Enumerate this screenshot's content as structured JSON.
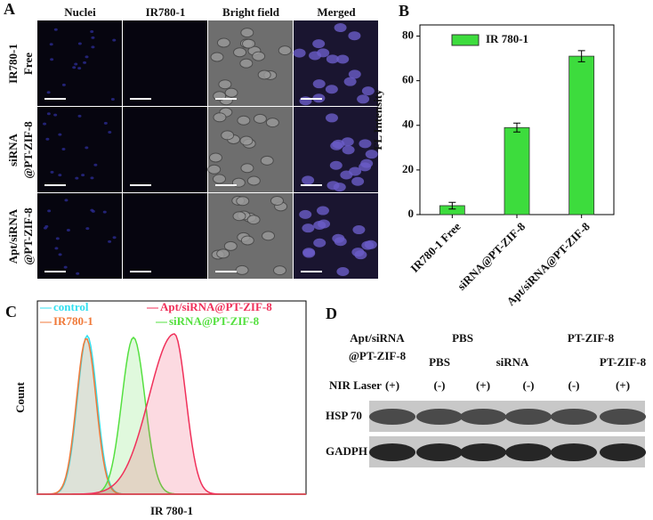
{
  "panel_a": {
    "label": "A",
    "columns": [
      "Nuclei",
      "IR780-1",
      "Bright field",
      "Merged"
    ],
    "rows": [
      [
        "IR780-1",
        "Free"
      ],
      [
        "siRNA",
        "@PT-ZIF-8"
      ],
      [
        "Apt/siRNA",
        "@PT-ZIF-8"
      ]
    ]
  },
  "chart_data": {
    "type": "bar",
    "panel_label": "B",
    "ylabel": "FL Intensity",
    "categories": [
      "IR780-1 Free",
      "siRNA@PT-ZIF-8",
      "Apt/siRNA@PT-ZIF-8"
    ],
    "series": [
      {
        "name": "IR 780-1",
        "color": "#3ddc3d",
        "values": [
          4,
          39,
          71
        ],
        "errors": [
          1.5,
          2,
          2.5
        ]
      }
    ],
    "ylim": [
      0,
      85
    ],
    "yticks": [
      0,
      20,
      40,
      60,
      80
    ],
    "legend": "upper left"
  },
  "panel_c": {
    "label": "C",
    "ylabel": "Count",
    "xlabel": "IR 780-1",
    "legend": [
      {
        "name": "control",
        "color": "#33e0f0"
      },
      {
        "name": "IR780-1",
        "color": "#f07a3a"
      },
      {
        "name": "Apt/siRNA@PT-ZIF-8",
        "color": "#f0305a"
      },
      {
        "name": "siRNA@PT-ZIF-8",
        "color": "#55e040"
      }
    ]
  },
  "panel_d": {
    "label": "D",
    "headers": [
      "Apt/siRNA",
      "@PT-ZIF-8",
      "PBS",
      "PBS",
      "siRNA",
      "PT-ZIF-8",
      "PT-ZIF-8"
    ],
    "row_label": "NIR Laser",
    "laser": [
      "(+)",
      "(-)",
      "(+)",
      "(-)",
      "(-)",
      "(+)"
    ],
    "blots": [
      "HSP 70",
      "GADPH"
    ]
  }
}
